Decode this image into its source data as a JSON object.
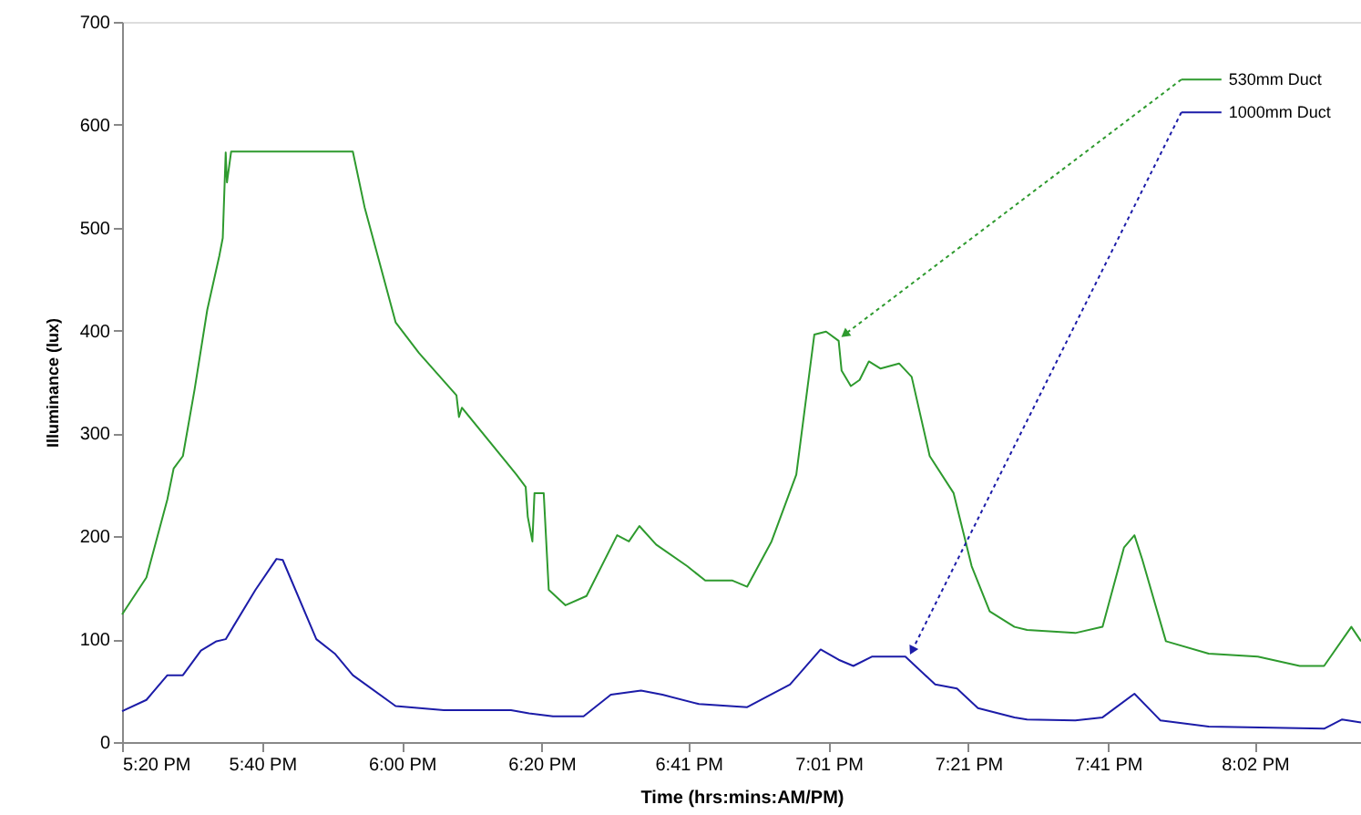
{
  "chart_data": {
    "type": "line",
    "xlabel": "Time (hrs:mins:AM/PM)",
    "ylabel": "Illuminance (lux)",
    "xlim": [
      17.333,
      20.286
    ],
    "ylim": [
      0,
      700
    ],
    "xticks": [
      {
        "value": 17.333,
        "label": "5:20 PM"
      },
      {
        "value": 17.667,
        "label": "5:40 PM"
      },
      {
        "value": 18.0,
        "label": "6:00 PM"
      },
      {
        "value": 18.333,
        "label": "6:20 PM"
      },
      {
        "value": 18.683,
        "label": "6:41 PM"
      },
      {
        "value": 19.017,
        "label": "7:01 PM"
      },
      {
        "value": 19.35,
        "label": "7:21 PM"
      },
      {
        "value": 19.683,
        "label": "7:41 PM"
      },
      {
        "value": 20.033,
        "label": "8:02 PM"
      }
    ],
    "yticks": [
      0,
      100,
      200,
      300,
      400,
      500,
      600,
      700
    ],
    "grid": false,
    "legend": "top right",
    "marker": "none",
    "line_style": "solid",
    "series": [
      {
        "name": "530mm Duct",
        "color": "#2e9a2e",
        "x": [
          17.333,
          17.391,
          17.441,
          17.456,
          17.478,
          17.506,
          17.536,
          17.565,
          17.573,
          17.58,
          17.583,
          17.593,
          17.883,
          17.911,
          17.985,
          18.041,
          18.13,
          18.136,
          18.143,
          18.273,
          18.295,
          18.3,
          18.311,
          18.316,
          18.338,
          18.35,
          18.39,
          18.44,
          18.513,
          18.541,
          18.566,
          18.606,
          18.68,
          18.723,
          18.788,
          18.823,
          18.881,
          18.94,
          18.983,
          19.011,
          19.041,
          19.048,
          19.07,
          19.091,
          19.113,
          19.141,
          19.185,
          19.215,
          19.258,
          19.315,
          19.358,
          19.401,
          19.46,
          19.49,
          19.605,
          19.67,
          19.721,
          19.746,
          19.765,
          19.821,
          19.923,
          20.04,
          20.14,
          20.198,
          20.263,
          20.286
        ],
        "values": [
          124,
          160,
          236,
          266,
          278,
          343,
          420,
          473,
          490,
          573,
          544,
          574,
          574,
          520,
          408,
          378,
          337,
          316,
          325,
          260,
          248,
          219,
          195,
          242,
          242,
          148,
          133,
          142,
          201,
          195,
          210,
          192,
          171,
          157,
          157,
          151,
          195,
          260,
          396,
          399,
          390,
          361,
          346,
          352,
          370,
          363,
          368,
          355,
          278,
          242,
          171,
          127,
          112,
          109,
          106,
          112,
          189,
          201,
          177,
          98,
          86,
          83,
          74,
          74,
          112,
          98
        ]
      },
      {
        "name": "1000mm Duct",
        "color": "#1c1ca8",
        "x": [
          17.333,
          17.391,
          17.441,
          17.478,
          17.521,
          17.558,
          17.58,
          17.651,
          17.701,
          17.716,
          17.796,
          17.84,
          17.883,
          17.985,
          18.1,
          18.26,
          18.303,
          18.36,
          18.433,
          18.498,
          18.57,
          18.621,
          18.708,
          18.823,
          18.925,
          18.998,
          19.041,
          19.076,
          19.12,
          19.2,
          19.271,
          19.323,
          19.373,
          19.46,
          19.49,
          19.605,
          19.67,
          19.746,
          19.808,
          19.923,
          20.198,
          20.241,
          20.286
        ],
        "values": [
          30,
          41,
          65,
          65,
          89,
          98,
          100,
          148,
          178,
          177,
          100,
          86,
          65,
          35,
          31,
          31,
          28,
          25,
          25,
          46,
          50,
          46,
          37,
          34,
          56,
          90,
          80,
          74,
          83,
          83,
          56,
          52,
          33,
          24,
          22,
          21,
          24,
          47,
          21,
          15,
          13,
          22,
          19
        ]
      }
    ]
  }
}
